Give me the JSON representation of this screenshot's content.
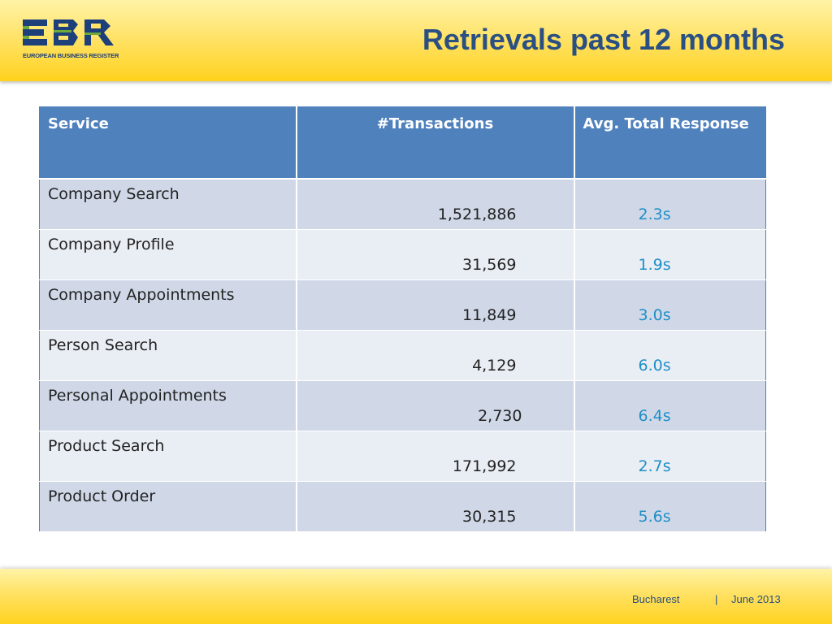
{
  "header": {
    "logo_tagline": "EUROPEAN BUSINESS REGISTER",
    "title": "Retrievals past 12 months"
  },
  "table": {
    "columns": [
      "Service",
      "#Transactions",
      "Avg. Total Response"
    ],
    "rows": [
      {
        "service": "Company Search",
        "transactions": "1,521,886",
        "response": "2.3s"
      },
      {
        "service": "Company Profile",
        "transactions": "31,569",
        "response": "1.9s"
      },
      {
        "service": "Company Appointments",
        "transactions": "11,849",
        "response": "3.0s"
      },
      {
        "service": "Person Search",
        "transactions": "4,129",
        "response": "6.0s"
      },
      {
        "service": "Personal Appointments",
        "transactions": "2,730",
        "response": "6.4s"
      },
      {
        "service": "Product Search",
        "transactions": "171,992",
        "response": "2.7s"
      },
      {
        "service": "Product Order",
        "transactions": "30,315",
        "response": "5.6s"
      }
    ]
  },
  "footer": {
    "location": "Bucharest",
    "separator": "|",
    "date": "June 2013"
  },
  "colors": {
    "header_yellow": "#ffd21e",
    "table_header_blue": "#4f81bd",
    "row_band_dark": "#d0d8e8",
    "row_band_light": "#e9edf4",
    "response_text": "#1f8fc7",
    "title_text": "#2a4f82"
  }
}
